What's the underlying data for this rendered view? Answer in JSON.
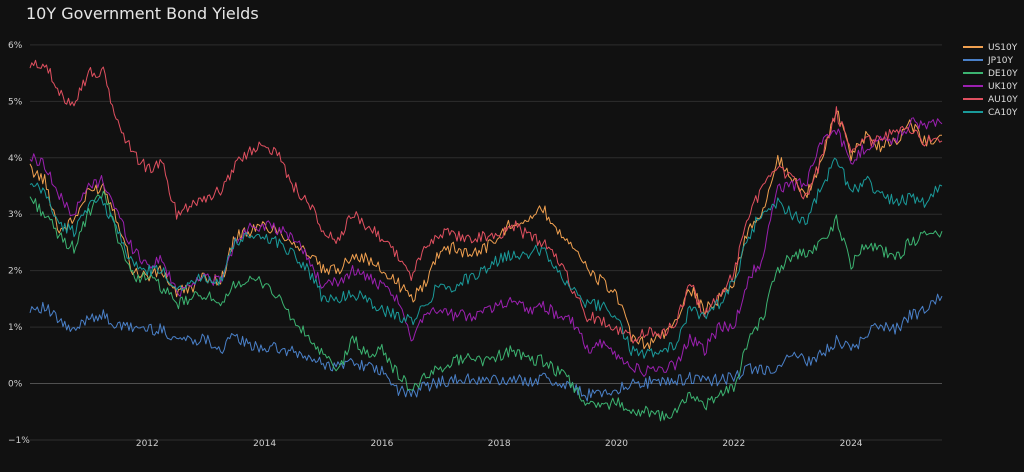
{
  "chart_data": {
    "type": "line",
    "title": "10Y Government Bond Yields",
    "xlabel": "",
    "ylabel": "",
    "xlim": [
      2010.0,
      2025.55
    ],
    "ylim": [
      -1.0,
      6.3
    ],
    "x_ticks": [
      "2012",
      "2014",
      "2016",
      "2018",
      "2020",
      "2022",
      "2024"
    ],
    "y_ticks": [
      {
        "v": -1,
        "label": "−1%"
      },
      {
        "v": 0,
        "label": "0%"
      },
      {
        "v": 1,
        "label": "1%"
      },
      {
        "v": 2,
        "label": "2%"
      },
      {
        "v": 3,
        "label": "3%"
      },
      {
        "v": 4,
        "label": "4%"
      },
      {
        "v": 5,
        "label": "5%"
      },
      {
        "v": 6,
        "label": "6%"
      }
    ],
    "grid": true,
    "legend_position": "top-right",
    "x": [
      2010.0,
      2010.25,
      2010.5,
      2010.75,
      2011.0,
      2011.25,
      2011.5,
      2011.75,
      2012.0,
      2012.25,
      2012.5,
      2012.75,
      2013.0,
      2013.25,
      2013.5,
      2013.75,
      2014.0,
      2014.25,
      2014.5,
      2014.75,
      2015.0,
      2015.25,
      2015.5,
      2015.75,
      2016.0,
      2016.25,
      2016.5,
      2016.75,
      2017.0,
      2017.25,
      2017.5,
      2017.75,
      2018.0,
      2018.25,
      2018.5,
      2018.75,
      2019.0,
      2019.25,
      2019.5,
      2019.75,
      2020.0,
      2020.25,
      2020.5,
      2020.75,
      2021.0,
      2021.25,
      2021.5,
      2021.75,
      2022.0,
      2022.25,
      2022.5,
      2022.75,
      2023.0,
      2023.25,
      2023.5,
      2023.75,
      2024.0,
      2024.25,
      2024.5,
      2024.75,
      2025.0,
      2025.25,
      2025.55
    ],
    "series": [
      {
        "name": "US10Y",
        "color": "#f0a050",
        "values": [
          3.8,
          3.6,
          2.7,
          2.9,
          3.4,
          3.5,
          2.9,
          2.0,
          1.9,
          2.0,
          1.6,
          1.7,
          1.9,
          1.8,
          2.6,
          2.7,
          2.8,
          2.7,
          2.5,
          2.3,
          2.0,
          2.0,
          2.3,
          2.2,
          2.0,
          1.8,
          1.5,
          1.8,
          2.4,
          2.4,
          2.3,
          2.4,
          2.6,
          2.9,
          2.9,
          3.1,
          2.7,
          2.5,
          2.0,
          1.8,
          1.6,
          0.8,
          0.7,
          0.8,
          1.1,
          1.7,
          1.3,
          1.5,
          1.8,
          2.8,
          3.0,
          4.0,
          3.6,
          3.4,
          3.9,
          4.9,
          4.0,
          4.4,
          4.2,
          4.3,
          4.6,
          4.3,
          4.4
        ]
      },
      {
        "name": "JP10Y",
        "color": "#4a80c8",
        "values": [
          1.35,
          1.35,
          1.1,
          0.9,
          1.2,
          1.2,
          1.0,
          1.0,
          0.97,
          0.95,
          0.8,
          0.78,
          0.8,
          0.6,
          0.85,
          0.65,
          0.65,
          0.6,
          0.55,
          0.45,
          0.35,
          0.3,
          0.4,
          0.3,
          0.2,
          -0.1,
          -0.2,
          -0.05,
          0.05,
          0.05,
          0.08,
          0.05,
          0.06,
          0.05,
          0.05,
          0.1,
          0.0,
          -0.05,
          -0.2,
          -0.15,
          -0.1,
          0.0,
          0.02,
          0.02,
          0.05,
          0.1,
          0.05,
          0.07,
          0.1,
          0.25,
          0.25,
          0.25,
          0.5,
          0.4,
          0.5,
          0.75,
          0.6,
          0.85,
          1.05,
          0.95,
          1.2,
          1.3,
          1.55
        ]
      },
      {
        "name": "DE10Y",
        "color": "#3cb371",
        "values": [
          3.3,
          3.0,
          2.6,
          2.4,
          3.0,
          3.4,
          2.6,
          1.9,
          1.9,
          1.7,
          1.4,
          1.5,
          1.6,
          1.3,
          1.8,
          1.8,
          1.8,
          1.5,
          1.1,
          0.8,
          0.5,
          0.2,
          0.8,
          0.5,
          0.6,
          0.2,
          -0.1,
          0.1,
          0.3,
          0.4,
          0.5,
          0.4,
          0.5,
          0.6,
          0.4,
          0.4,
          0.2,
          0.0,
          -0.4,
          -0.4,
          -0.3,
          -0.5,
          -0.5,
          -0.6,
          -0.5,
          -0.2,
          -0.4,
          -0.2,
          -0.1,
          0.8,
          1.2,
          2.0,
          2.3,
          2.3,
          2.5,
          2.9,
          2.1,
          2.5,
          2.4,
          2.2,
          2.5,
          2.6,
          2.7
        ]
      },
      {
        "name": "UK10Y",
        "color": "#9b20b0",
        "values": [
          4.0,
          3.9,
          3.3,
          3.0,
          3.5,
          3.6,
          3.0,
          2.4,
          2.1,
          2.2,
          1.6,
          1.8,
          1.9,
          1.8,
          2.5,
          2.8,
          2.8,
          2.7,
          2.6,
          2.2,
          1.7,
          1.8,
          2.0,
          1.9,
          1.7,
          1.5,
          0.8,
          1.3,
          1.3,
          1.2,
          1.2,
          1.3,
          1.4,
          1.5,
          1.3,
          1.4,
          1.2,
          1.1,
          0.6,
          0.7,
          0.5,
          0.3,
          0.2,
          0.3,
          0.3,
          0.8,
          0.6,
          1.0,
          1.0,
          1.9,
          2.2,
          3.5,
          3.5,
          3.6,
          4.3,
          4.5,
          3.9,
          4.2,
          4.3,
          4.3,
          4.6,
          4.6,
          4.6
        ]
      },
      {
        "name": "AU10Y",
        "color": "#e05060",
        "values": [
          5.6,
          5.7,
          5.1,
          5.0,
          5.5,
          5.5,
          4.6,
          4.1,
          3.8,
          3.9,
          3.0,
          3.2,
          3.3,
          3.4,
          3.9,
          4.1,
          4.3,
          4.0,
          3.5,
          3.2,
          2.7,
          2.5,
          3.0,
          2.8,
          2.6,
          2.3,
          1.9,
          2.4,
          2.7,
          2.6,
          2.6,
          2.6,
          2.6,
          2.8,
          2.6,
          2.5,
          2.2,
          1.7,
          1.2,
          1.1,
          1.0,
          0.8,
          0.9,
          0.9,
          1.0,
          1.8,
          1.2,
          1.6,
          1.9,
          3.0,
          3.5,
          3.8,
          3.6,
          3.3,
          4.0,
          4.8,
          4.2,
          4.3,
          4.3,
          4.5,
          4.5,
          4.3,
          4.3
        ]
      },
      {
        "name": "CA10Y",
        "color": "#1a9a9a",
        "values": [
          3.5,
          3.4,
          2.8,
          2.7,
          3.2,
          3.2,
          2.7,
          2.1,
          2.0,
          2.0,
          1.7,
          1.8,
          1.9,
          1.8,
          2.5,
          2.6,
          2.6,
          2.5,
          2.3,
          2.0,
          1.5,
          1.5,
          1.6,
          1.5,
          1.3,
          1.2,
          1.1,
          1.4,
          1.8,
          1.7,
          1.9,
          2.0,
          2.2,
          2.3,
          2.3,
          2.4,
          2.0,
          1.7,
          1.4,
          1.4,
          1.2,
          0.6,
          0.5,
          0.6,
          0.7,
          1.3,
          1.2,
          1.4,
          1.8,
          2.6,
          3.1,
          3.2,
          3.0,
          2.9,
          3.5,
          4.0,
          3.4,
          3.6,
          3.4,
          3.2,
          3.3,
          3.2,
          3.5
        ]
      }
    ]
  }
}
